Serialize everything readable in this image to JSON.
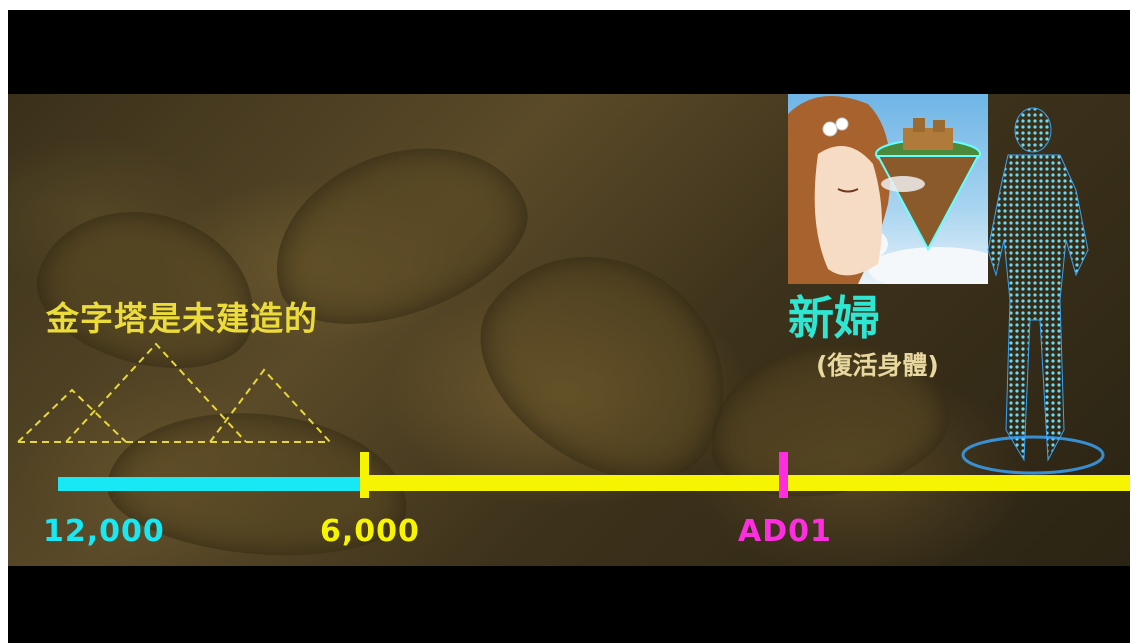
{
  "headline": "金字塔是未建造的",
  "bride_title": "新婦",
  "bride_subtitle": "(復活身體)",
  "timeline": {
    "labels": [
      "12,000",
      "6,000",
      "AD01"
    ],
    "colors": {
      "early": "#18e8f4",
      "late": "#f6f400",
      "ad": "#ff2de0"
    }
  },
  "icons": [
    "pyramid-outline-icon",
    "anime-girl-illustration",
    "floating-island-icon",
    "hologram-figure-icon"
  ]
}
